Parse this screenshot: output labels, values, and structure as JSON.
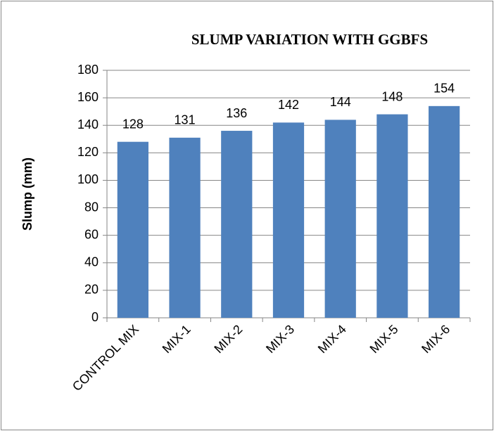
{
  "chart_data": {
    "type": "bar",
    "title": "SLUMP VARIATION WITH GGBFS",
    "y_label": "Slump (mm)",
    "categories": [
      "CONTROL MIX",
      "MIX-1",
      "MIX-2",
      "MIX-3",
      "MIX-4",
      "MIX-5",
      "MIX-6"
    ],
    "values": [
      128,
      131,
      136,
      142,
      144,
      148,
      154
    ],
    "color": "#4f81bd",
    "ylim": [
      0,
      180
    ],
    "yticks": [
      0,
      20,
      40,
      60,
      80,
      100,
      120,
      140,
      160,
      180
    ],
    "grid": true
  }
}
